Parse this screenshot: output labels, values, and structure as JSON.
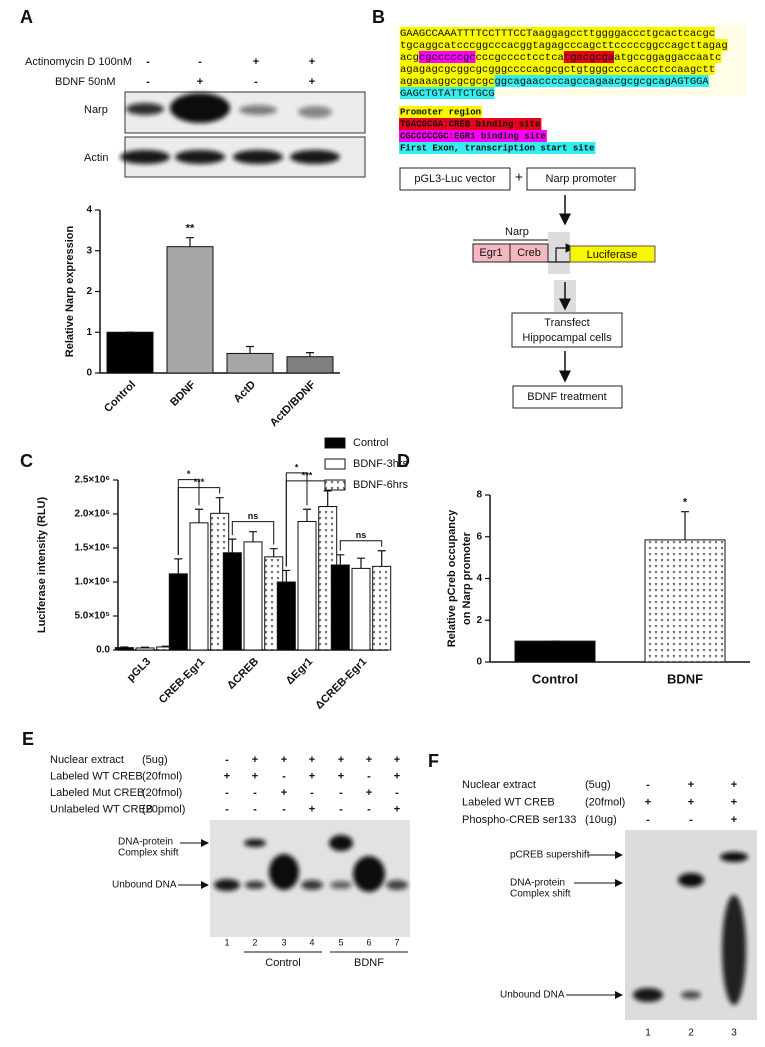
{
  "panel_labels": [
    "A",
    "B",
    "C",
    "D",
    "E",
    "F"
  ],
  "blot": {
    "treatments": [
      {
        "label": "Actinomycin D 100nM",
        "signs": [
          "-",
          "-",
          "+",
          "+"
        ]
      },
      {
        "label": "BDNF 50nM",
        "signs": [
          "-",
          "+",
          "-",
          "+"
        ]
      }
    ],
    "rows": [
      "Narp",
      "Actin"
    ]
  },
  "chart_data": [
    {
      "type": "bar",
      "ylabel": "Relative Narp expression",
      "categories": [
        "Control",
        "BDNF",
        "ActD",
        "ActD/BDNF"
      ],
      "values": [
        1,
        3.1,
        0.48,
        0.4
      ],
      "errors": [
        0,
        0.22,
        0.17,
        0.1
      ],
      "colors": [
        "#000000",
        "#a6a6a6",
        "#a6a6a6",
        "#7f7f7f"
      ],
      "fills": [
        "solid",
        "solid",
        "solid",
        "solid"
      ],
      "ylim": [
        0,
        4
      ],
      "yticks": [
        0,
        1,
        2,
        3,
        4
      ],
      "annotations": [
        {
          "category": "BDNF",
          "text": "**"
        }
      ]
    },
    {
      "type": "bar",
      "ylabel": "Luciferase intensity (RLU)",
      "categories": [
        "pGL3",
        "CREB-Egr1",
        "ΔCREB",
        "ΔEgr1",
        "ΔCREB-Egr1"
      ],
      "series": [
        {
          "name": "Control",
          "color": "#000000",
          "fill": "solid",
          "values": [
            35000,
            1120000,
            1430000,
            1000000,
            1250000
          ],
          "errors": [
            10000,
            220000,
            200000,
            170000,
            150000
          ]
        },
        {
          "name": "BDNF-3hrs",
          "color": "#ffffff",
          "fill": "solid",
          "values": [
            30000,
            1870000,
            1590000,
            1890000,
            1200000
          ],
          "errors": [
            10000,
            200000,
            150000,
            180000,
            150000
          ]
        },
        {
          "name": "BDNF-6hrs",
          "color": "#ffffff",
          "fill": "dots",
          "values": [
            45000,
            2010000,
            1370000,
            2110000,
            1230000
          ],
          "errors": [
            10000,
            230000,
            120000,
            230000,
            230000
          ]
        }
      ],
      "ylim": [
        0,
        2500000
      ],
      "yticks": [
        {
          "value": 0,
          "label": "0.0"
        },
        {
          "value": 500000,
          "label": "5.0×10⁵"
        },
        {
          "value": 1000000,
          "label": "1.0×10⁶"
        },
        {
          "value": 1500000,
          "label": "1.5×10⁶"
        },
        {
          "value": 2000000,
          "label": "2.0×10⁶"
        },
        {
          "value": 2500000,
          "label": "2.5×10⁶"
        }
      ],
      "legend": "top-right",
      "brackets": [
        {
          "category": "CREB-Egr1",
          "from": "Control",
          "to": "BDNF-3hrs",
          "text": "*"
        },
        {
          "category": "CREB-Egr1",
          "from": "Control",
          "to": "BDNF-6hrs",
          "text": "***"
        },
        {
          "category": "ΔCREB",
          "from": "Control",
          "to": "BDNF-6hrs",
          "text": "ns"
        },
        {
          "category": "ΔEgr1",
          "from": "Control",
          "to": "BDNF-3hrs",
          "text": "*"
        },
        {
          "category": "ΔEgr1",
          "from": "Control",
          "to": "BDNF-6hrs",
          "text": "***"
        },
        {
          "category": "ΔCREB-Egr1",
          "from": "Control",
          "to": "BDNF-6hrs",
          "text": "ns"
        }
      ]
    },
    {
      "type": "bar",
      "ylabel": [
        "Relative pCreb occupancy",
        "on Narp promoter"
      ],
      "categories": [
        "Control",
        "BDNF"
      ],
      "values": [
        1,
        5.85
      ],
      "errors": [
        0,
        1.35
      ],
      "colors": [
        "#000000",
        "#ffffff"
      ],
      "fills": [
        "solid",
        "dots"
      ],
      "ylim": [
        0,
        8
      ],
      "yticks": [
        0,
        2,
        4,
        6,
        8
      ],
      "annotations": [
        {
          "category": "BDNF",
          "text": "*"
        }
      ]
    }
  ],
  "sequence": {
    "lines": [
      [
        {
          "text": "GAAGCCAAATTTTCCTTTCCTaaggagccttggggaccctgcactcacgc",
          "highlight": "#f7f700"
        }
      ],
      [
        {
          "text": "tgcaggcatcccggcccacggtagagcccagcttcccccggccagcttagag",
          "highlight": "#f7f700"
        }
      ],
      [
        {
          "text": "acg",
          "highlight": "#f7f700"
        },
        {
          "text": "cgcccccgc",
          "highlight": "#ff00ff"
        },
        {
          "text": "cccgcccctcctca",
          "highlight": "#f7f700"
        },
        {
          "text": "tgacgcga",
          "highlight": "#e8001c"
        },
        {
          "text": "atgccggaggaccaatc",
          "highlight": "#f7f700"
        }
      ],
      [
        {
          "text": "agagagcgcggcgcgggccccacgcgctgtgggccccaccctccaagctt",
          "highlight": "#f7f700"
        }
      ],
      [
        {
          "text": "agaaaaggcgcgcgc",
          "highlight": "#f7f700"
        },
        {
          "text": "ggcagaaccccagccagaacgcgcgcagAGTGGA",
          "highlight": "#33eeee"
        }
      ],
      [
        {
          "text": "GAGCTGTATTCTGCG",
          "highlight": "#33eeee"
        }
      ]
    ],
    "legend": [
      {
        "text": "Promoter region",
        "highlight": "#f7f700"
      },
      {
        "text": "TGACGCGA:CREB binding site",
        "highlight": "#e8001c"
      },
      {
        "text": "CGCCCCCGC:EGR1 binding site",
        "highlight": "#ff00ff"
      },
      {
        "text": "First Exon, transcription start site",
        "highlight": "#33eeee"
      }
    ]
  },
  "construct": {
    "vector": "pGL3-Luc vector",
    "plus": "+",
    "promoter": "Narp promoter",
    "narp": "Narp",
    "egr1": "Egr1",
    "creb": "Creb",
    "luciferase": "Luciferase",
    "transfect": [
      "Transfect",
      "Hippocampal cells"
    ],
    "treatment": "BDNF treatment"
  },
  "emsa_e": {
    "conditions": [
      {
        "label": "Nuclear extract",
        "amount": "(5ug)",
        "signs": [
          "-",
          "+",
          "+",
          "+",
          "+",
          "+",
          "+"
        ]
      },
      {
        "label": "Labeled WT CREB",
        "amount": "(20fmol)",
        "signs": [
          "+",
          "+",
          "-",
          "+",
          "+",
          "-",
          "+"
        ]
      },
      {
        "label": "Labeled Mut CREB",
        "amount": "(20fmol)",
        "signs": [
          "-",
          "-",
          "+",
          "-",
          "-",
          "+",
          "-"
        ]
      },
      {
        "label": "Unlabeled WT CREB",
        "amount": "(20pmol)",
        "signs": [
          "-",
          "-",
          "-",
          "+",
          "-",
          "-",
          "+"
        ]
      }
    ],
    "complex": [
      "DNA-protein",
      "Complex shift"
    ],
    "unbound": "Unbound DNA",
    "lanes": [
      "1",
      "2",
      "3",
      "4",
      "5",
      "6",
      "7"
    ],
    "groups": [
      "Control",
      "BDNF"
    ]
  },
  "emsa_f": {
    "conditions": [
      {
        "label": "Nuclear extract",
        "amount": "(5ug)",
        "signs": [
          "-",
          "+",
          "+"
        ]
      },
      {
        "label": "Labeled WT CREB",
        "amount": "(20fmol)",
        "signs": [
          "+",
          "+",
          "+"
        ]
      },
      {
        "label": "Phospho-CREB ser133",
        "amount": "(10ug)",
        "signs": [
          "-",
          "-",
          "+"
        ]
      }
    ],
    "supershift": "pCREB supershift",
    "complex": [
      "DNA-protein",
      "Complex shift"
    ],
    "unbound": "Unbound DNA",
    "lanes": [
      "1",
      "2",
      "3"
    ]
  }
}
